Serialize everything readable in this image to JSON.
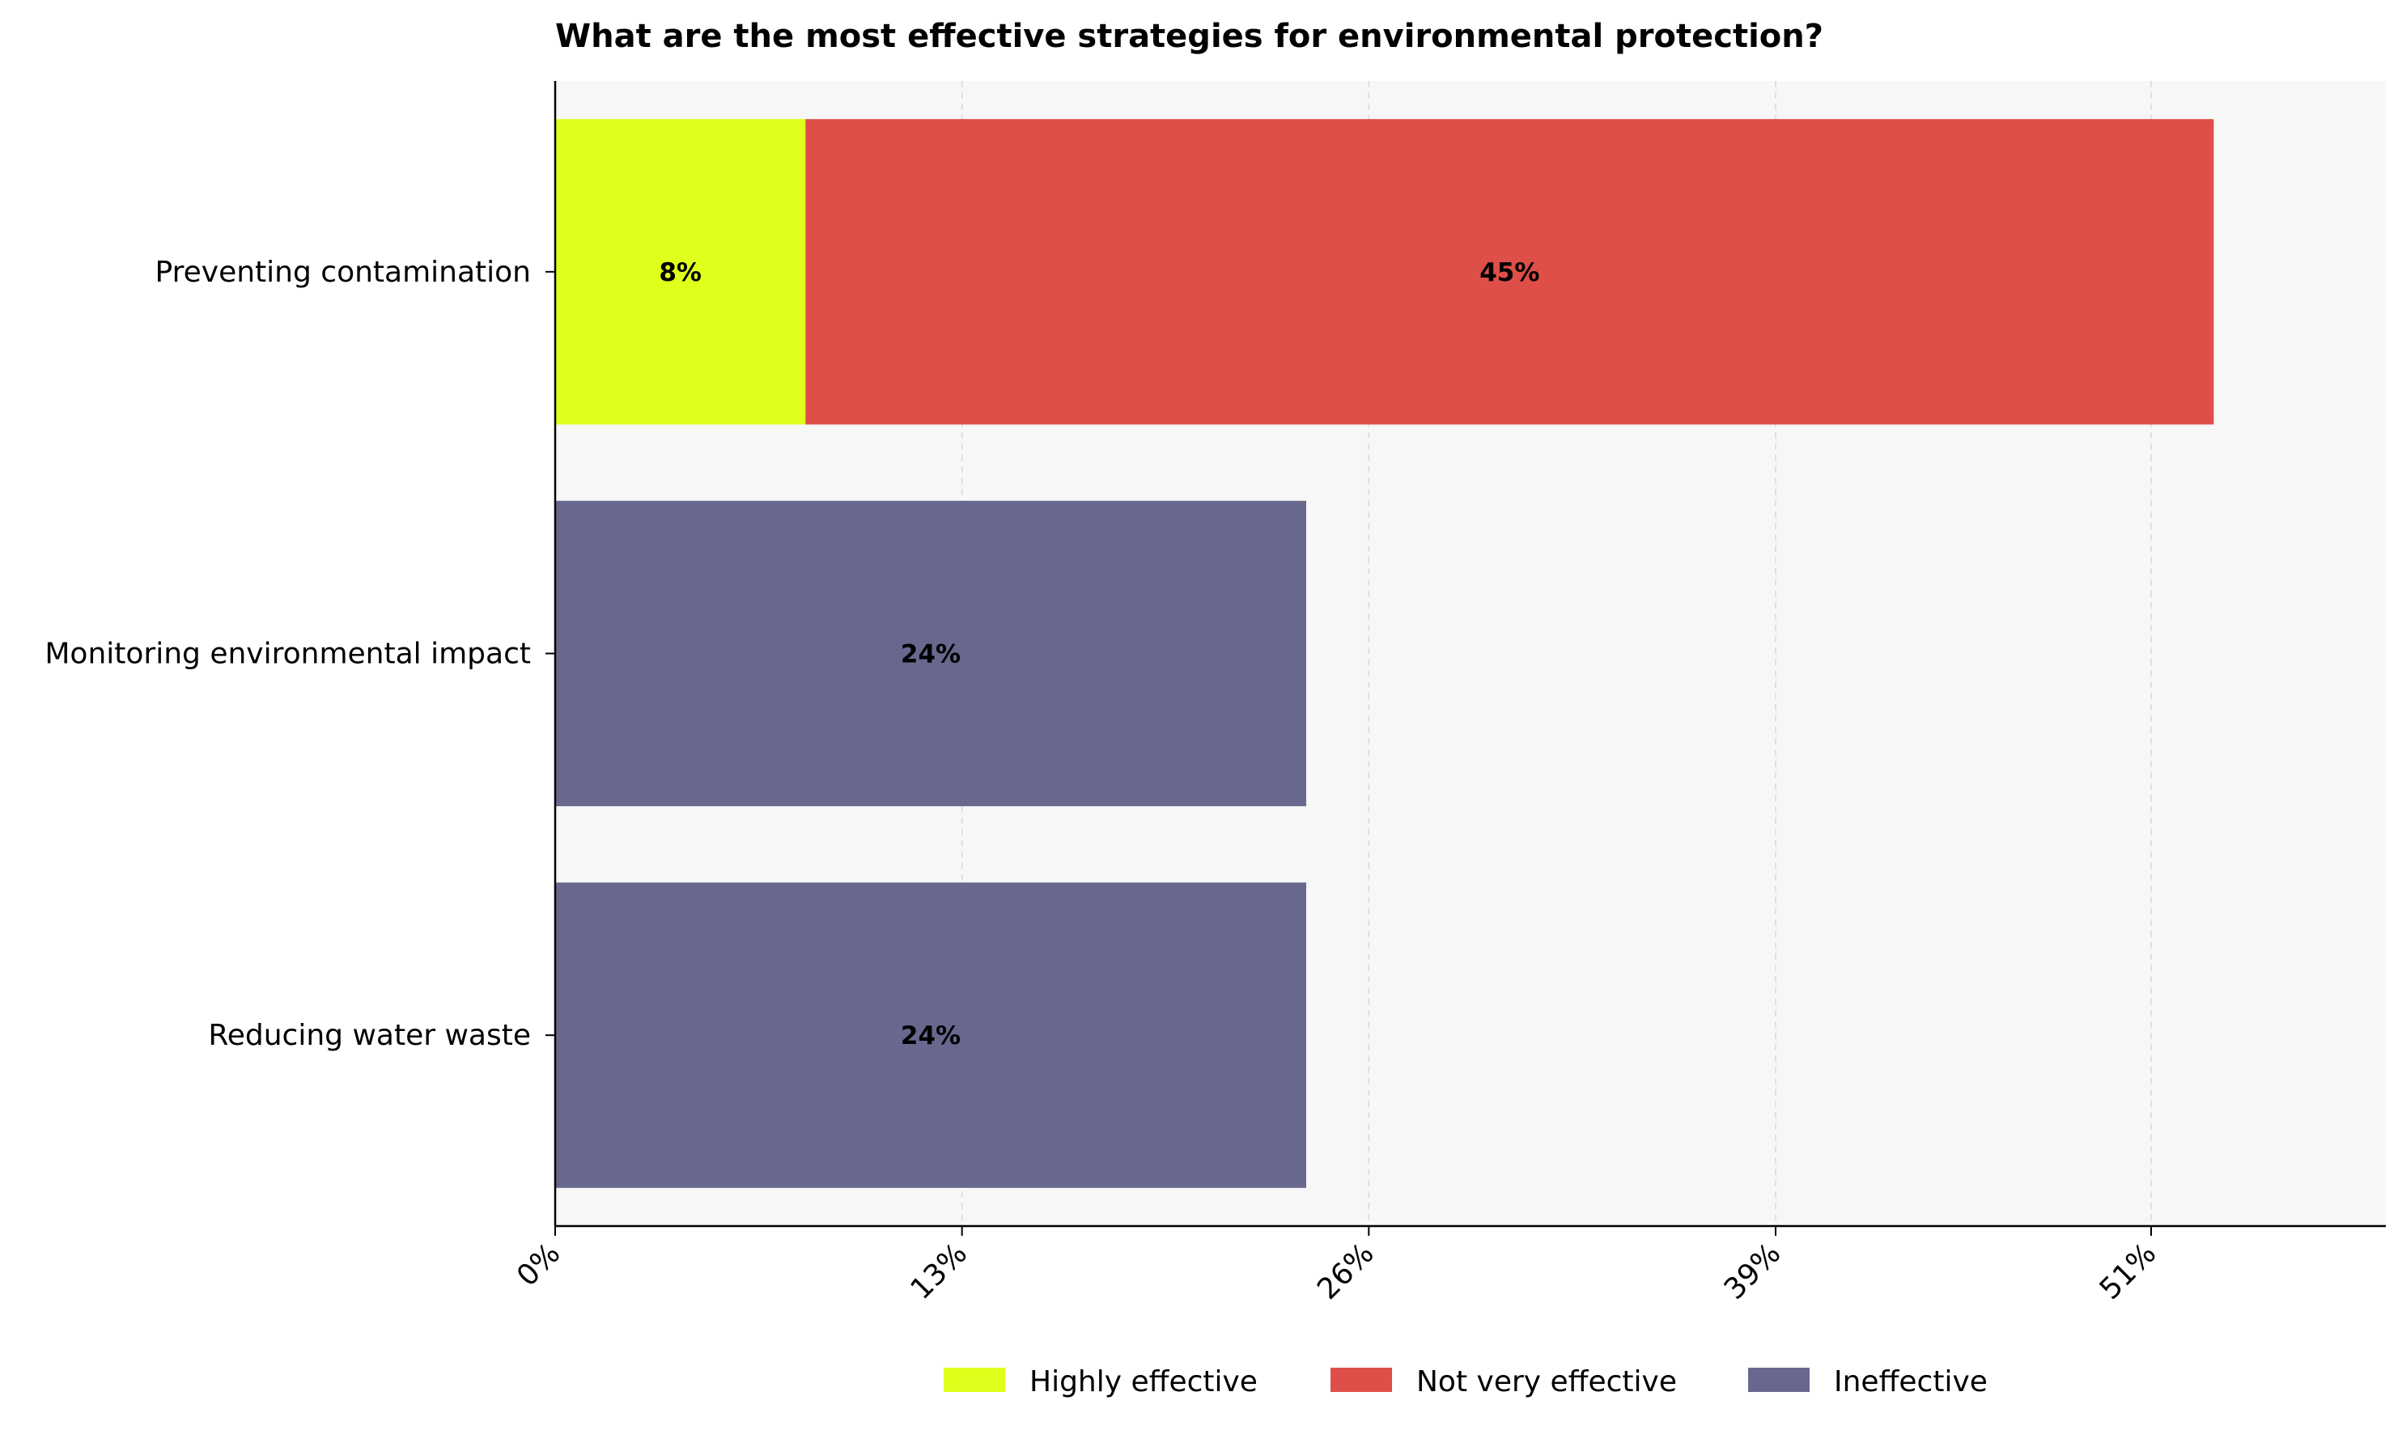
{
  "chart_data": {
    "type": "bar",
    "orientation": "horizontal",
    "stacked": true,
    "title": "What are the most effective strategies for environmental protection?",
    "xlabel": "",
    "ylabel": "",
    "categories": [
      "Preventing contamination",
      "Monitoring environmental impact",
      "Reducing water waste"
    ],
    "series": [
      {
        "name": "Highly effective",
        "color": "#e0ff1a",
        "values": [
          8,
          0,
          0
        ]
      },
      {
        "name": "Not very effective",
        "color": "#dd4f48",
        "values": [
          45,
          0,
          0
        ]
      },
      {
        "name": "Ineffective",
        "color": "#68688f",
        "values": [
          0,
          24,
          24
        ]
      }
    ],
    "value_labels": [
      {
        "category": "Preventing contamination",
        "series": "Highly effective",
        "text": "8%"
      },
      {
        "category": "Preventing contamination",
        "series": "Not very effective",
        "text": "45%"
      },
      {
        "category": "Monitoring environmental impact",
        "series": "Ineffective",
        "text": "24%"
      },
      {
        "category": "Reducing water waste",
        "series": "Ineffective",
        "text": "24%"
      }
    ],
    "xticks": [
      0,
      13,
      26,
      39,
      51
    ],
    "xtick_labels": [
      "0%",
      "13%",
      "26%",
      "39%",
      "51%"
    ],
    "xlim": [
      0,
      58.5
    ],
    "grid": "vertical dashed",
    "background": "#f7f7f7",
    "legend": {
      "placement": "bottom-center",
      "entries": [
        "Highly effective",
        "Not very effective",
        "Ineffective"
      ]
    }
  }
}
